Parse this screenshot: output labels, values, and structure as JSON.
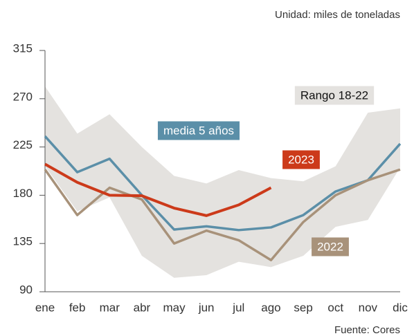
{
  "chart_data": {
    "type": "line",
    "unit_note": "Unidad: miles de toneladas",
    "source": "Fuente: Cores",
    "categories": [
      "ene",
      "feb",
      "mar",
      "abr",
      "may",
      "jun",
      "jul",
      "ago",
      "sep",
      "oct",
      "nov",
      "dic"
    ],
    "ylim": [
      90,
      315
    ],
    "yticks": [
      90,
      135,
      180,
      225,
      270,
      315
    ],
    "band": {
      "name": "Rango 18-22",
      "color": "#e4e2df",
      "lower": [
        207,
        165,
        178,
        123.5,
        103,
        105.5,
        118,
        113,
        123.5,
        150.5,
        157,
        206
      ],
      "upper": [
        281.5,
        237.5,
        255.5,
        225,
        198,
        191,
        203.5,
        196,
        193,
        207,
        257,
        261
      ]
    },
    "series": [
      {
        "name": "media 5 años",
        "color": "#5b8fa8",
        "values": [
          235,
          201.5,
          214,
          180,
          148,
          151,
          147.5,
          150,
          161.5,
          183.5,
          194,
          228
        ]
      },
      {
        "name": "2022",
        "color": "#a8927a",
        "values": [
          204,
          161.5,
          187,
          176,
          135,
          147,
          138,
          119.5,
          155,
          180,
          194,
          204
        ]
      },
      {
        "name": "2023",
        "color": "#cc3a1a",
        "values": [
          209,
          192,
          180,
          179.5,
          168,
          161,
          171,
          187,
          null,
          null,
          null,
          null
        ]
      }
    ]
  }
}
